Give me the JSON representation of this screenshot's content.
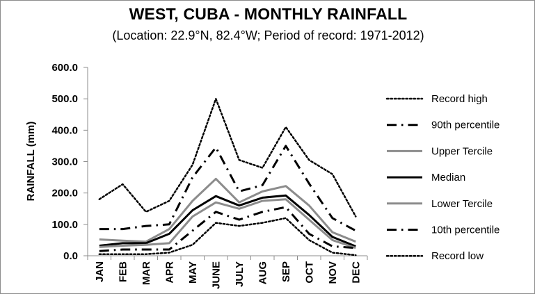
{
  "chart_data": {
    "type": "line",
    "title": "WEST, CUBA - MONTHLY RAINFALL",
    "subtitle": "(Location: 22.9°N, 82.4°W; Period of record: 1971-2012)",
    "xlabel": "",
    "ylabel": "RAINFALL (mm)",
    "ylim": [
      0,
      600
    ],
    "yticks": [
      "0.0",
      "100.0",
      "200.0",
      "300.0",
      "400.0",
      "500.0",
      "600.0"
    ],
    "grid": false,
    "legend_position": "right",
    "categories": [
      "JAN",
      "FEB",
      "MAR",
      "APR",
      "MAY",
      "JUNE",
      "JULY",
      "AUG",
      "SEP",
      "OCT",
      "NOV",
      "DEC"
    ],
    "series": [
      {
        "name": "Record high",
        "style": "dotted",
        "color": "#000000",
        "values": [
          180,
          228,
          140,
          175,
          290,
          500,
          305,
          280,
          410,
          305,
          260,
          125
        ]
      },
      {
        "name": "90th percentile",
        "style": "dashdot",
        "color": "#000000",
        "values": [
          85,
          85,
          95,
          100,
          250,
          345,
          205,
          225,
          350,
          230,
          120,
          80
        ]
      },
      {
        "name": "Upper Tercile",
        "style": "solid",
        "color": "#8c8c8c",
        "values": [
          52,
          48,
          45,
          85,
          175,
          245,
          170,
          205,
          222,
          160,
          75,
          45
        ]
      },
      {
        "name": "Median",
        "style": "solid",
        "color": "#000000",
        "values": [
          32,
          40,
          40,
          70,
          145,
          190,
          160,
          185,
          192,
          130,
          60,
          30
        ]
      },
      {
        "name": "Lower Tercile",
        "style": "solid",
        "color": "#8c8c8c",
        "values": [
          28,
          32,
          35,
          40,
          125,
          170,
          150,
          175,
          180,
          115,
          50,
          25
        ]
      },
      {
        "name": "10th percentile",
        "style": "dashdot",
        "color": "#000000",
        "values": [
          15,
          20,
          20,
          20,
          80,
          140,
          115,
          140,
          155,
          70,
          30,
          25
        ]
      },
      {
        "name": "Record low",
        "style": "dotted",
        "color": "#000000",
        "values": [
          5,
          5,
          5,
          10,
          35,
          105,
          95,
          105,
          120,
          50,
          10,
          2
        ]
      }
    ]
  }
}
